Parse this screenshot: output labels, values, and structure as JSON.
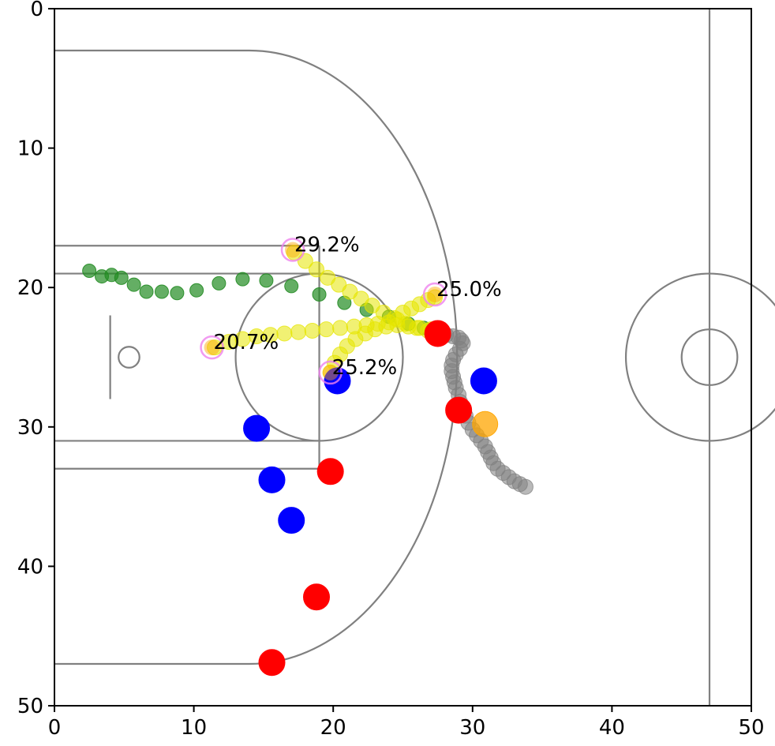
{
  "chart_data": {
    "type": "scatter",
    "title": "",
    "xlabel": "",
    "ylabel": "",
    "xlim": [
      0,
      50
    ],
    "ylim": [
      50,
      0
    ],
    "y_inverted": true,
    "grid": false,
    "xticks": [
      0,
      10,
      20,
      30,
      40,
      50
    ],
    "yticks": [
      0,
      10,
      20,
      30,
      40,
      50
    ],
    "court_color": "#808080",
    "series": [
      {
        "color": "#228b22",
        "marker": "small-circle",
        "points": [
          [
            2.5,
            18.8
          ],
          [
            3.4,
            19.2
          ],
          [
            4.1,
            19.1
          ],
          [
            4.8,
            19.3
          ],
          [
            5.7,
            19.8
          ],
          [
            6.6,
            20.3
          ],
          [
            7.7,
            20.3
          ],
          [
            8.8,
            20.4
          ],
          [
            10.2,
            20.2
          ],
          [
            11.8,
            19.7
          ],
          [
            13.5,
            19.4
          ],
          [
            15.2,
            19.5
          ],
          [
            17.0,
            19.9
          ],
          [
            19.0,
            20.5
          ],
          [
            20.8,
            21.1
          ],
          [
            22.4,
            21.6
          ],
          [
            24.0,
            22.1
          ],
          [
            25.4,
            22.6
          ],
          [
            26.5,
            22.9
          ]
        ]
      },
      {
        "color": "#e6e600",
        "marker": "medium-circle",
        "points": [
          [
            17.2,
            17.5
          ],
          [
            18.0,
            18.1
          ],
          [
            18.8,
            18.7
          ],
          [
            19.6,
            19.3
          ],
          [
            20.4,
            19.8
          ],
          [
            21.2,
            20.3
          ],
          [
            22.0,
            20.8
          ],
          [
            22.8,
            21.3
          ],
          [
            23.6,
            21.8
          ],
          [
            24.4,
            22.2
          ],
          [
            25.2,
            22.6
          ],
          [
            26.0,
            22.9
          ],
          [
            26.8,
            23.1
          ],
          [
            27.3,
            20.7
          ],
          [
            26.8,
            20.9
          ],
          [
            26.2,
            21.2
          ],
          [
            25.6,
            21.5
          ],
          [
            25.0,
            21.8
          ],
          [
            24.6,
            22.3
          ],
          [
            24.0,
            22.5
          ],
          [
            23.2,
            22.6
          ],
          [
            22.4,
            22.7
          ],
          [
            21.5,
            22.8
          ],
          [
            20.5,
            22.9
          ],
          [
            19.5,
            23.0
          ],
          [
            18.5,
            23.1
          ],
          [
            17.5,
            23.2
          ],
          [
            16.5,
            23.3
          ],
          [
            15.5,
            23.4
          ],
          [
            14.5,
            23.5
          ],
          [
            13.5,
            23.7
          ],
          [
            12.5,
            23.9
          ],
          [
            11.5,
            24.3
          ],
          [
            19.8,
            26.1
          ],
          [
            20.1,
            25.4
          ],
          [
            20.5,
            24.8
          ],
          [
            21.0,
            24.2
          ],
          [
            21.6,
            23.7
          ],
          [
            22.3,
            23.3
          ],
          [
            23.0,
            23.0
          ],
          [
            23.8,
            22.8
          ],
          [
            24.6,
            22.7
          ],
          [
            25.4,
            22.8
          ],
          [
            26.2,
            22.9
          ],
          [
            27.0,
            23.0
          ]
        ]
      },
      {
        "color": "#808080",
        "marker": "medium-circle",
        "points": [
          [
            27.6,
            23.3
          ],
          [
            28.1,
            23.4
          ],
          [
            28.6,
            23.5
          ],
          [
            29.0,
            23.6
          ],
          [
            29.2,
            23.8
          ],
          [
            29.3,
            24.0
          ],
          [
            29.1,
            24.4
          ],
          [
            28.8,
            24.8
          ],
          [
            28.6,
            25.2
          ],
          [
            28.5,
            25.6
          ],
          [
            28.5,
            26.0
          ],
          [
            28.6,
            26.4
          ],
          [
            28.7,
            26.8
          ],
          [
            28.8,
            27.2
          ],
          [
            29.0,
            27.7
          ],
          [
            29.1,
            28.2
          ],
          [
            29.3,
            28.7
          ],
          [
            29.5,
            29.2
          ],
          [
            29.7,
            29.7
          ],
          [
            30.0,
            30.2
          ],
          [
            30.3,
            30.6
          ],
          [
            30.6,
            31.0
          ],
          [
            30.9,
            31.4
          ],
          [
            31.1,
            31.8
          ],
          [
            31.3,
            32.2
          ],
          [
            31.5,
            32.6
          ],
          [
            31.8,
            33.0
          ],
          [
            32.2,
            33.3
          ],
          [
            32.6,
            33.6
          ],
          [
            33.0,
            33.9
          ],
          [
            33.4,
            34.1
          ],
          [
            33.8,
            34.3
          ]
        ]
      },
      {
        "color": "#0000ff",
        "marker": "large-circle",
        "points": [
          [
            20.3,
            26.7
          ],
          [
            14.5,
            30.1
          ],
          [
            15.6,
            33.8
          ],
          [
            17.0,
            36.7
          ],
          [
            30.8,
            26.7
          ]
        ]
      },
      {
        "color": "#ff0000",
        "marker": "large-circle",
        "points": [
          [
            27.5,
            23.3
          ],
          [
            29.0,
            28.8
          ],
          [
            19.8,
            33.2
          ],
          [
            18.8,
            42.2
          ],
          [
            15.6,
            46.9
          ]
        ]
      },
      {
        "color": "#ffa500",
        "marker": "ball",
        "points": [
          [
            30.9,
            29.8
          ]
        ]
      }
    ],
    "annotations": [
      {
        "text": "29.2%",
        "x": 17.1,
        "y": 17.3
      },
      {
        "text": "25.0%",
        "x": 27.3,
        "y": 20.5
      },
      {
        "text": "20.7%",
        "x": 11.3,
        "y": 24.3
      },
      {
        "text": "25.2%",
        "x": 19.8,
        "y": 26.1
      }
    ],
    "annotation_marker_color": "#ee82ee"
  }
}
